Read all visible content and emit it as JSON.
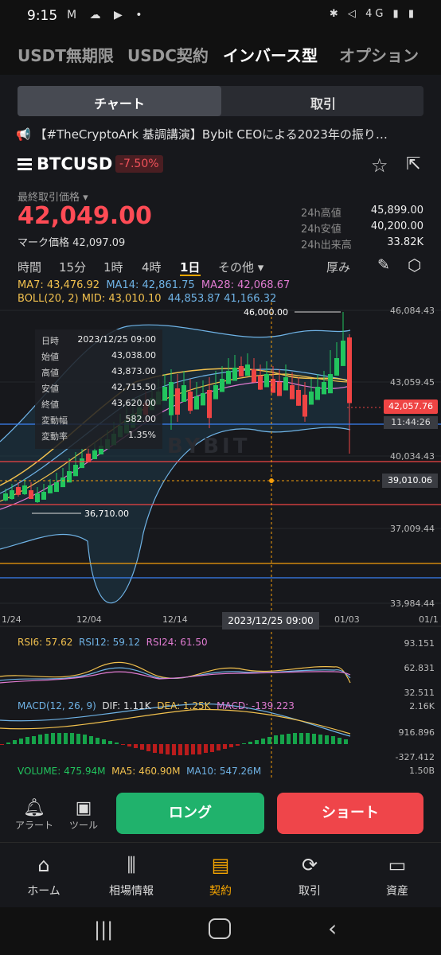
{
  "status_bar": {
    "time": "9:15",
    "network": "4G"
  },
  "top_tabs": [
    "USDT無期限",
    "USDC契約",
    "インバース型",
    "オプション"
  ],
  "segment": {
    "chart": "チャート",
    "trade": "取引"
  },
  "news": "【#TheCryptoArk 基調講演】Bybit CEOによる2023年の振り…",
  "ticker": {
    "symbol": "BTCUSD",
    "change": "-7.50%"
  },
  "price": {
    "last_label": "最終取引価格",
    "last": "42,049.00",
    "mark_label": "マーク価格",
    "mark": "42,097.09"
  },
  "stats": [
    {
      "label": "24h高値",
      "value": "45,899.00"
    },
    {
      "label": "24h安値",
      "value": "40,200.00"
    },
    {
      "label": "24h出来高",
      "value": "33.82K"
    }
  ],
  "timeframes": [
    "時間",
    "15分",
    "1時",
    "4時",
    "1日",
    "その他",
    "厚み"
  ],
  "indicators": {
    "ma7": "MA7: 43,476.92",
    "ma14": "MA14: 42,861.75",
    "ma28": "MA28: 42,068.67",
    "boll_label": "BOLL(20, 2) MID: 43,010.10",
    "boll_up": "44,853.87",
    "boll_dn": "41,166.32"
  },
  "y_axis": [
    "46,084.43",
    "43,059.45",
    "40,034.43",
    "37,009.44",
    "33,984.44"
  ],
  "x_axis": [
    "1/24",
    "12/04",
    "12/14",
    "2023/12/25 09:00",
    "01/03",
    "01/1"
  ],
  "markers": {
    "high": "46,000.00",
    "low": "36,710.00",
    "current": "42,057.76",
    "countdown": "11:44:26",
    "cross": "39,010.06",
    "watermark": "BYBIT"
  },
  "tooltip": [
    {
      "k": "日時",
      "v": "2023/12/25 09:00"
    },
    {
      "k": "始値",
      "v": "43,038.00"
    },
    {
      "k": "高値",
      "v": "43,873.00"
    },
    {
      "k": "安値",
      "v": "42,715.50"
    },
    {
      "k": "終値",
      "v": "43,620.00"
    },
    {
      "k": "変動幅",
      "v": "582.00"
    },
    {
      "k": "変動率",
      "v": "1.35%"
    }
  ],
  "rsi": {
    "rsi6": "RSI6: 57.62",
    "rsi12": "RSI12: 59.12",
    "rsi24": "RSI24: 61.50",
    "axis": [
      "93.151",
      "62.831",
      "32.511"
    ]
  },
  "macd": {
    "label": "MACD(12, 26, 9)",
    "dif": "DIF: 1.11K",
    "dea": "DEA: 1.25K",
    "macd": "MACD: -139.223",
    "axis": [
      "2.16K",
      "916.896",
      "-327.412"
    ]
  },
  "volume": {
    "vol": "VOLUME: 475.94M",
    "ma5": "MA5: 460.90M",
    "ma10": "MA10: 547.26M",
    "axis": "1.50B"
  },
  "tools": {
    "alert": "アラート",
    "tool": "ツール"
  },
  "actions": {
    "long": "ロング",
    "short": "ショート"
  },
  "bottom_nav": [
    "ホーム",
    "相場情報",
    "契約",
    "取引",
    "資産"
  ],
  "colors": {
    "green": "#22c55e",
    "red": "#ef4444",
    "accent": "#f7a600",
    "bg": "#17181c"
  }
}
